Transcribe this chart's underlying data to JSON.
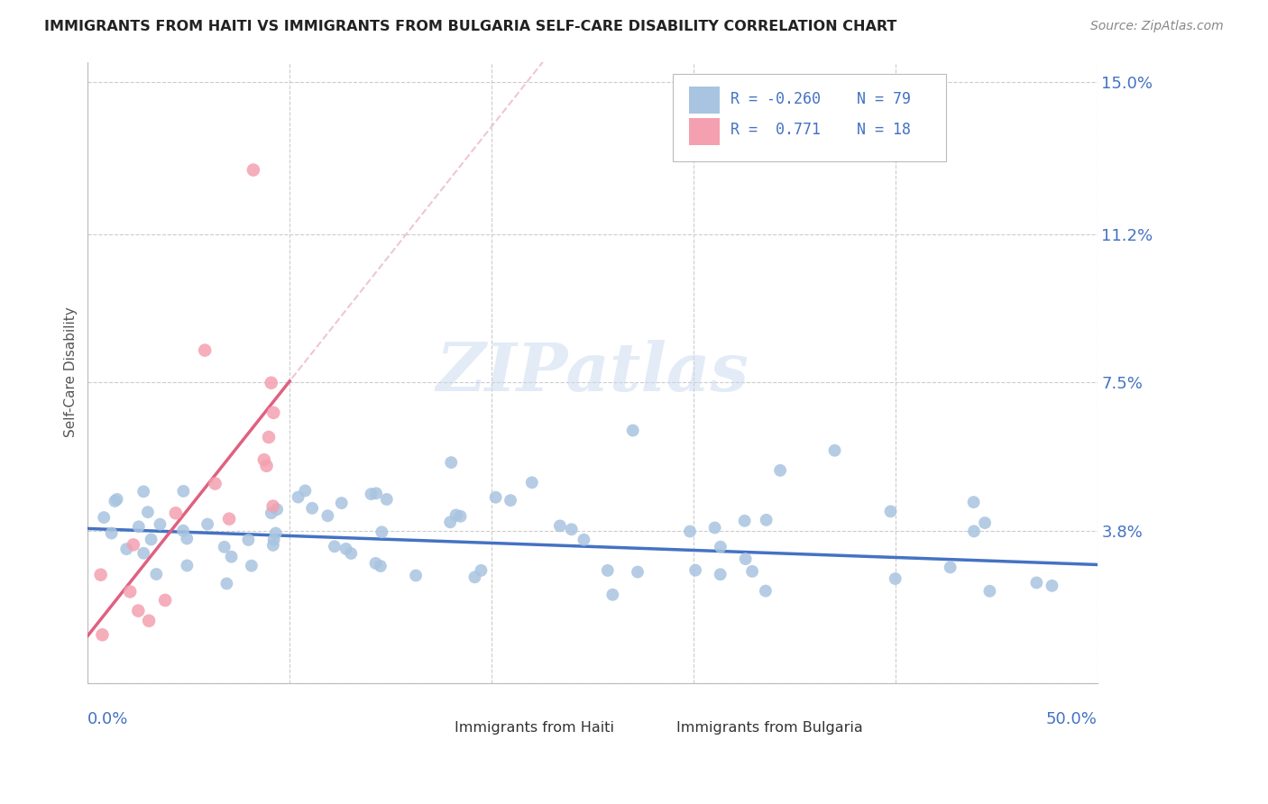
{
  "title": "IMMIGRANTS FROM HAITI VS IMMIGRANTS FROM BULGARIA SELF-CARE DISABILITY CORRELATION CHART",
  "source": "Source: ZipAtlas.com",
  "ylabel": "Self-Care Disability",
  "ytick_vals": [
    0.0,
    0.038,
    0.075,
    0.112,
    0.15
  ],
  "ytick_labels": [
    "",
    "3.8%",
    "7.5%",
    "11.2%",
    "15.0%"
  ],
  "xlim": [
    0.0,
    0.5
  ],
  "ylim": [
    0.0,
    0.155
  ],
  "haiti_R": -0.26,
  "haiti_N": 79,
  "bulgaria_R": 0.771,
  "bulgaria_N": 18,
  "haiti_color": "#a8c4e0",
  "bulgaria_color": "#f4a0b0",
  "haiti_line_color": "#4472c4",
  "bulgaria_line_color": "#e06080",
  "bulgaria_ext_color": "#e8b0be",
  "background_color": "#ffffff",
  "grid_color": "#cccccc",
  "axis_label_color": "#4472c4",
  "title_color": "#222222",
  "source_color": "#888888",
  "ylabel_color": "#555555"
}
